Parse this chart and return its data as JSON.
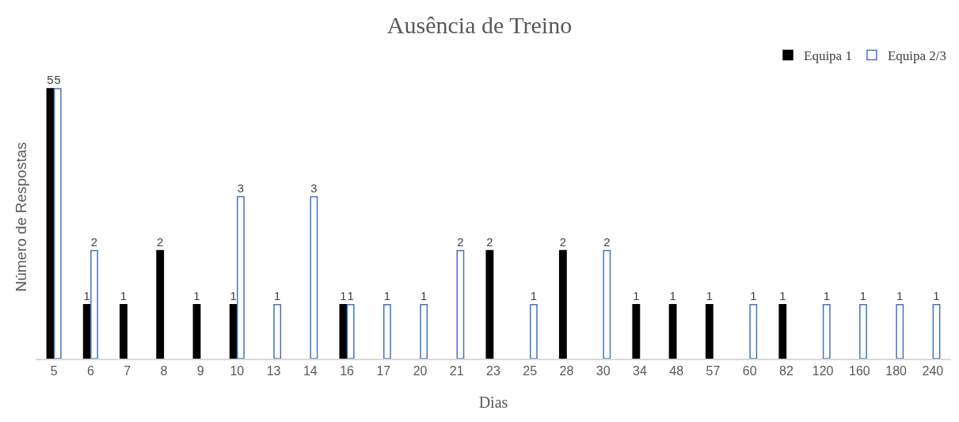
{
  "chart_data": {
    "type": "bar",
    "title": "Ausência de Treino",
    "xlabel": "Dias",
    "ylabel": "Número de Respostas",
    "categories": [
      "5",
      "6",
      "7",
      "8",
      "9",
      "10",
      "13",
      "14",
      "16",
      "17",
      "20",
      "21",
      "23",
      "25",
      "28",
      "30",
      "34",
      "48",
      "57",
      "60",
      "82",
      "120",
      "160",
      "180",
      "240"
    ],
    "series": [
      {
        "name": "Equipa 1",
        "color": "#000000",
        "values": [
          5,
          1,
          1,
          2,
          1,
          1,
          null,
          null,
          1,
          null,
          null,
          null,
          2,
          null,
          2,
          null,
          1,
          1,
          1,
          null,
          1,
          null,
          null,
          null,
          null
        ]
      },
      {
        "name": "Equipa 2/3",
        "color": "#4472c4",
        "values": [
          5,
          2,
          null,
          null,
          null,
          3,
          1,
          3,
          1,
          1,
          1,
          2,
          null,
          1,
          null,
          2,
          null,
          null,
          null,
          1,
          null,
          1,
          1,
          1,
          1
        ]
      }
    ],
    "data_labels": true,
    "legend": "top right",
    "grid": false
  }
}
